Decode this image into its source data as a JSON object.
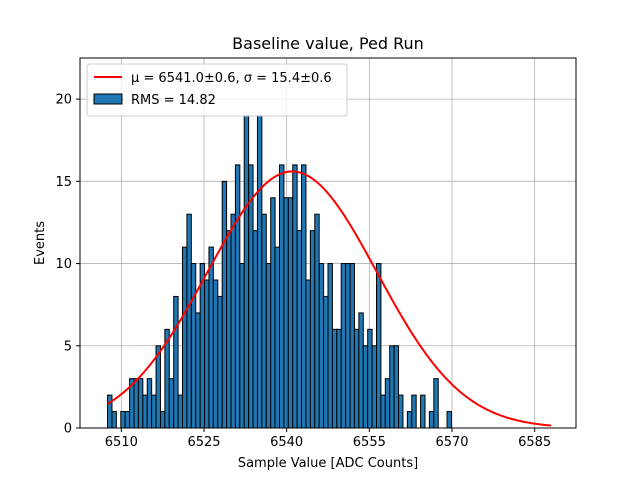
{
  "chart_data": {
    "type": "histogram",
    "title": "Baseline value, Ped Run",
    "xlabel": "Sample Value [ADC Counts]",
    "ylabel": "Events",
    "xlim": [
      6502.5,
      6592.5
    ],
    "ylim": [
      0,
      22.5
    ],
    "xticks": [
      6510,
      6525,
      6540,
      6555,
      6570,
      6585
    ],
    "yticks": [
      0,
      5,
      10,
      15,
      20
    ],
    "grid": true,
    "legend_position": "upper-left",
    "bin_start": 6507.5,
    "bin_width": 0.8,
    "bar_color": "#1f77b4",
    "bar_edge_color": "#000000",
    "fit_color": "#ff0000",
    "counts": [
      2,
      1,
      0,
      1,
      1,
      3,
      3,
      3,
      2,
      3,
      2,
      5,
      1,
      6,
      3,
      8,
      2,
      11,
      13,
      10,
      7,
      10,
      9,
      11,
      9,
      8,
      15,
      12,
      13,
      16,
      10,
      19,
      16,
      12,
      19,
      13,
      10,
      14,
      11,
      16,
      14,
      14,
      16,
      12,
      16,
      9,
      12,
      13,
      10,
      8,
      10,
      6,
      6,
      10,
      10,
      10,
      6,
      7,
      5,
      6,
      5,
      10,
      2,
      3,
      5,
      5,
      2,
      0,
      1,
      2,
      0,
      2,
      0,
      1,
      3,
      0,
      0,
      1,
      0,
      0,
      0,
      0,
      0,
      0,
      0,
      0,
      0,
      0,
      0,
      0,
      0,
      0,
      0,
      0,
      0,
      0,
      0,
      0,
      0,
      0,
      0
    ],
    "fit": {
      "mu": 6541.0,
      "sigma": 15.4,
      "amplitude": 15.6,
      "x_range": [
        6507.5,
        6588.0
      ]
    },
    "legend": [
      {
        "label": "μ = 6541.0±0.6, σ = 15.4±0.6",
        "type": "line",
        "color": "#ff0000"
      },
      {
        "label": "RMS = 14.82",
        "type": "patch",
        "color": "#1f77b4"
      }
    ]
  }
}
